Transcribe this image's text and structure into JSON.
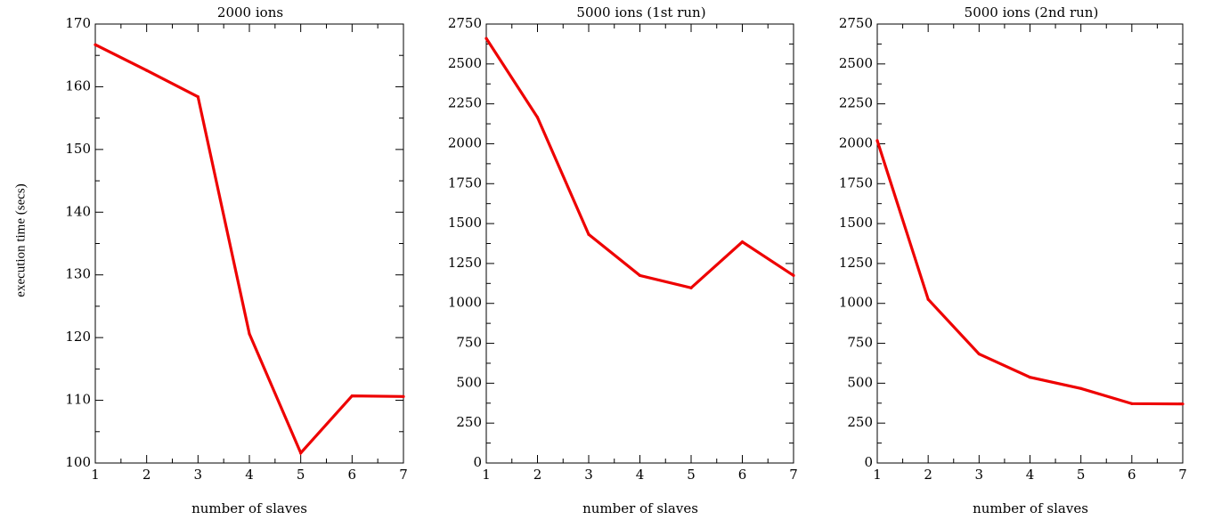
{
  "chart_data": [
    {
      "type": "line",
      "title": "2000 ions",
      "xlabel": "number of slaves",
      "ylabel": "execution time (secs)",
      "x": [
        1,
        2,
        3,
        4,
        5,
        6,
        7
      ],
      "xlim": [
        1,
        7
      ],
      "ylim": [
        100,
        170
      ],
      "xticks": [
        1,
        2,
        3,
        4,
        5,
        6,
        7
      ],
      "yticks": [
        100,
        110,
        120,
        130,
        140,
        150,
        160,
        170
      ],
      "y_minor_step": 5,
      "grid": false,
      "series": [
        {
          "values": [
            166.7,
            162.6,
            158.4,
            120.6,
            101.6,
            110.7,
            110.6
          ],
          "color": "#ee0000"
        }
      ]
    },
    {
      "type": "line",
      "title": "5000 ions (1st run)",
      "xlabel": "number of slaves",
      "ylabel": "",
      "x": [
        1,
        2,
        3,
        4,
        5,
        6,
        7
      ],
      "xlim": [
        1,
        7
      ],
      "ylim": [
        0,
        2750
      ],
      "xticks": [
        1,
        2,
        3,
        4,
        5,
        6,
        7
      ],
      "yticks": [
        0,
        250,
        500,
        750,
        1000,
        1250,
        1500,
        1750,
        2000,
        2250,
        2500,
        2750
      ],
      "y_minor_step": 125,
      "grid": false,
      "series": [
        {
          "values": [
            2660,
            2165,
            1432,
            1175,
            1097,
            1385,
            1175
          ],
          "color": "#ee0000"
        }
      ]
    },
    {
      "type": "line",
      "title": "5000 ions (2nd run)",
      "xlabel": "number of slaves",
      "ylabel": "",
      "x": [
        1,
        2,
        3,
        4,
        5,
        6,
        7
      ],
      "xlim": [
        1,
        7
      ],
      "ylim": [
        0,
        2750
      ],
      "xticks": [
        1,
        2,
        3,
        4,
        5,
        6,
        7
      ],
      "yticks": [
        0,
        250,
        500,
        750,
        1000,
        1250,
        1500,
        1750,
        2000,
        2250,
        2500,
        2750
      ],
      "y_minor_step": 125,
      "grid": false,
      "series": [
        {
          "values": [
            2020,
            1025,
            683,
            537,
            467,
            372,
            370
          ],
          "color": "#ee0000"
        }
      ]
    }
  ]
}
